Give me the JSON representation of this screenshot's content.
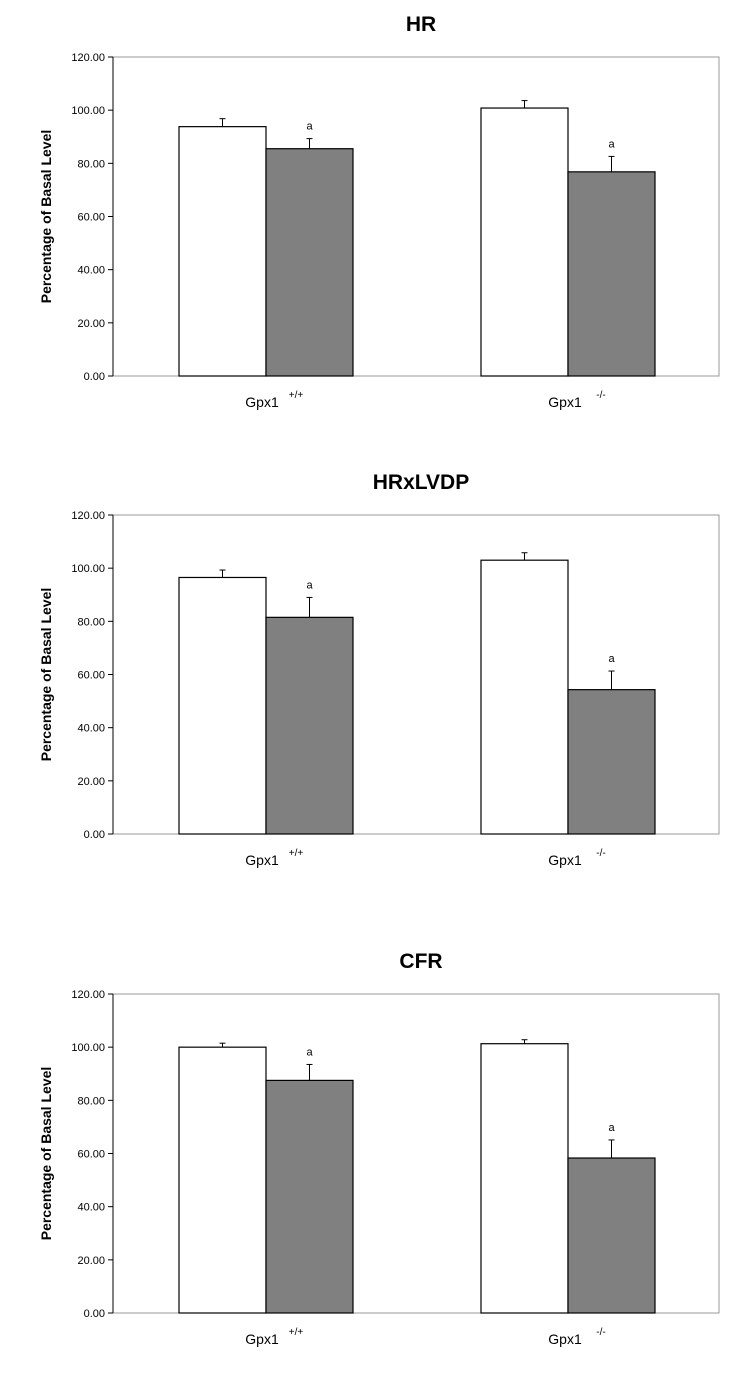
{
  "chart_data": [
    {
      "type": "bar",
      "title": "HR",
      "ylabel": "Percentage of Basal Level",
      "xlabel": "",
      "ylim": [
        0,
        120
      ],
      "yticks": [
        "0.00",
        "20.00",
        "40.00",
        "60.00",
        "80.00",
        "100.00",
        "120.00"
      ],
      "grid": false,
      "categories": [
        {
          "base": "Gpx1",
          "sup": "+/+"
        },
        {
          "base": "Gpx1",
          "sup": "-/-"
        }
      ],
      "series": [
        {
          "color": "#ffffff",
          "values": [
            93.8,
            100.8
          ],
          "errors": [
            3.0,
            2.8
          ],
          "annotations": [
            "",
            ""
          ]
        },
        {
          "color": "#808080",
          "values": [
            85.5,
            76.8
          ],
          "errors": [
            3.8,
            5.8
          ],
          "annotations": [
            "a",
            "a"
          ]
        }
      ]
    },
    {
      "type": "bar",
      "title": "HRxLVDP",
      "ylabel": "Percentage of Basal Level",
      "xlabel": "",
      "ylim": [
        0,
        120
      ],
      "yticks": [
        "0.00",
        "20.00",
        "40.00",
        "60.00",
        "80.00",
        "100.00",
        "120.00"
      ],
      "grid": false,
      "categories": [
        {
          "base": "Gpx1",
          "sup": "+/+"
        },
        {
          "base": "Gpx1",
          "sup": "-/-"
        }
      ],
      "series": [
        {
          "color": "#ffffff",
          "values": [
            96.5,
            103.0
          ],
          "errors": [
            2.8,
            2.8
          ],
          "annotations": [
            "",
            ""
          ]
        },
        {
          "color": "#808080",
          "values": [
            81.5,
            54.3
          ],
          "errors": [
            7.5,
            7.0
          ],
          "annotations": [
            "a",
            "a"
          ]
        }
      ]
    },
    {
      "type": "bar",
      "title": "CFR",
      "ylabel": "Percentage of Basal Level",
      "xlabel": "",
      "ylim": [
        0,
        120
      ],
      "yticks": [
        "0.00",
        "20.00",
        "40.00",
        "60.00",
        "80.00",
        "100.00",
        "120.00"
      ],
      "grid": false,
      "categories": [
        {
          "base": "Gpx1",
          "sup": "+/+"
        },
        {
          "base": "Gpx1",
          "sup": "-/-"
        }
      ],
      "series": [
        {
          "color": "#ffffff",
          "values": [
            100.0,
            101.3
          ],
          "errors": [
            1.5,
            1.5
          ],
          "annotations": [
            "",
            ""
          ]
        },
        {
          "color": "#808080",
          "values": [
            87.5,
            58.3
          ],
          "errors": [
            6.0,
            6.8
          ],
          "annotations": [
            "a",
            "a"
          ]
        }
      ]
    }
  ]
}
